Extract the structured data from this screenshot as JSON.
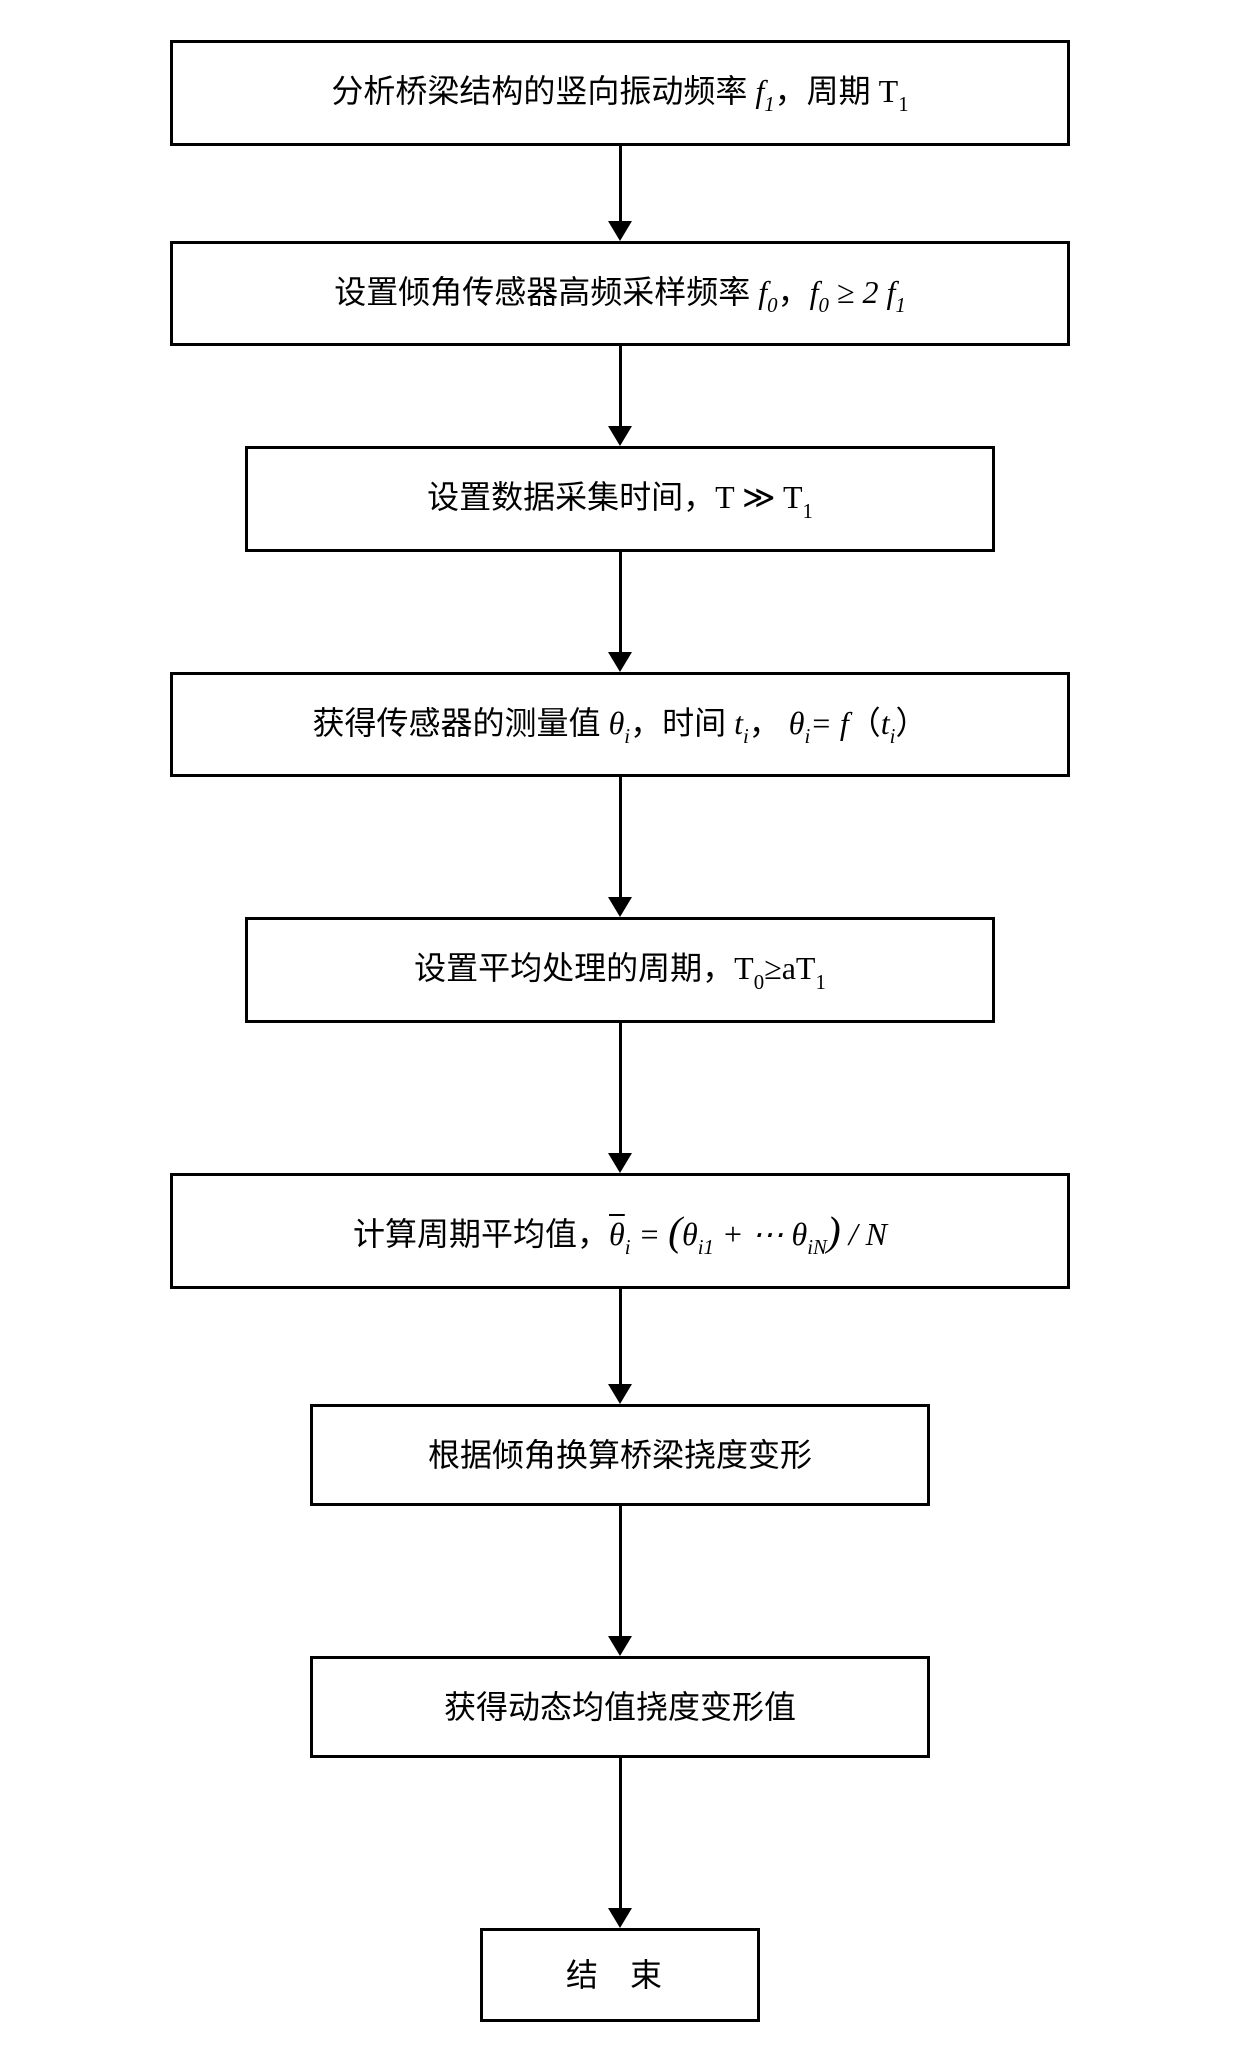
{
  "flowchart": {
    "type": "flowchart",
    "direction": "vertical",
    "background_color": "#ffffff",
    "box_border_color": "#000000",
    "box_border_width": 3,
    "box_background": "#ffffff",
    "text_color": "#000000",
    "font_family": "SimSun",
    "math_font_family": "Times New Roman",
    "base_fontsize": 32,
    "subscript_fontsize_ratio": 0.65,
    "arrow_color": "#000000",
    "arrow_line_width": 3,
    "arrow_head_width": 24,
    "arrow_head_height": 20,
    "nodes": [
      {
        "id": "n1",
        "width_class": "wide",
        "text_prefix": "分析桥梁结构的竖向振动频率 ",
        "var1": "f",
        "var1_sub": "1",
        "text_middle": "，周期 T",
        "text_middle_sub": "1"
      },
      {
        "id": "n2",
        "width_class": "wide",
        "text_prefix": "设置倾角传感器高频采样频率 ",
        "var1": "f",
        "var1_sub": "0",
        "text_middle": "，",
        "var2": "f",
        "var2_sub": "0",
        "rel": " ≥ 2 ",
        "var3": "f",
        "var3_sub": "1"
      },
      {
        "id": "n3",
        "width_class": "medium",
        "text_prefix": "设置数据采集时间，T ≫ T",
        "text_sub": "1"
      },
      {
        "id": "n4",
        "width_class": "wide",
        "text_prefix": "获得传感器的测量值 ",
        "var1": "θ",
        "var1_sub": "i",
        "text_m1": "，时间 ",
        "var2": "t",
        "var2_sub": "i",
        "text_m2": "，   ",
        "var3": "θ",
        "var3_sub": "i",
        "eq": "= ",
        "func": "f",
        "paren_open": "（",
        "var4": "t",
        "var4_sub": "i",
        "paren_close": "）"
      },
      {
        "id": "n5",
        "width_class": "medium",
        "text_prefix": "设置平均处理的周期，T",
        "sub1": "0",
        "rel": "≥aT",
        "sub2": "1"
      },
      {
        "id": "n6",
        "width_class": "wide",
        "text_prefix": "计算周期平均值，",
        "lhs_var": "θ",
        "lhs_sub": "i",
        "eq": " = ",
        "paren_open": "(",
        "term1_var": "θ",
        "term1_sub": "i1",
        "plus": " + ⋯ ",
        "term2_var": "θ",
        "term2_sub": "iN",
        "paren_close": ")",
        "div": " / ",
        "n_var": "N"
      },
      {
        "id": "n7",
        "width_class": "narrow",
        "text": "根据倾角换算桥梁挠度变形"
      },
      {
        "id": "n8",
        "width_class": "narrow",
        "text": "获得动态均值挠度变形值"
      },
      {
        "id": "n9",
        "width_class": "end",
        "text": "结 束"
      }
    ],
    "edges": [
      {
        "from": "n1",
        "to": "n2",
        "length": 75
      },
      {
        "from": "n2",
        "to": "n3",
        "length": 80
      },
      {
        "from": "n3",
        "to": "n4",
        "length": 100
      },
      {
        "from": "n4",
        "to": "n5",
        "length": 120
      },
      {
        "from": "n5",
        "to": "n6",
        "length": 130
      },
      {
        "from": "n6",
        "to": "n7",
        "length": 95
      },
      {
        "from": "n7",
        "to": "n8",
        "length": 130
      },
      {
        "from": "n8",
        "to": "n9",
        "length": 150
      }
    ]
  }
}
